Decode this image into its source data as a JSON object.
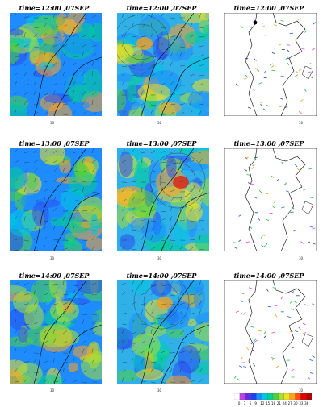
{
  "panels": [
    {
      "row": 0,
      "col": 0,
      "title": "time=12:00 ,07SEP",
      "kind": "shade"
    },
    {
      "row": 0,
      "col": 1,
      "title": "time=12:00 ,07SEP",
      "kind": "shade"
    },
    {
      "row": 0,
      "col": 2,
      "title": "time=12:00 ,07SEP",
      "kind": "obs"
    },
    {
      "row": 1,
      "col": 0,
      "title": "time=13:00 ,07SEP",
      "kind": "shade"
    },
    {
      "row": 1,
      "col": 1,
      "title": "time=13:00 ,07SEP",
      "kind": "shade"
    },
    {
      "row": 1,
      "col": 2,
      "title": "time=13:00 ,07SEP",
      "kind": "obs"
    },
    {
      "row": 2,
      "col": 0,
      "title": "time=14:00 ,07SEP",
      "kind": "shade"
    },
    {
      "row": 2,
      "col": 1,
      "title": "time=14:00 ,07SEP",
      "kind": "shade"
    },
    {
      "row": 2,
      "col": 2,
      "title": "time=14:00 ,07SEP",
      "kind": "obs"
    }
  ],
  "chart_data": {
    "type": "heatmap",
    "colorbar": {
      "ticks": [
        "0",
        "3",
        "6",
        "9",
        "12",
        "15",
        "18",
        "21",
        "24",
        "27",
        "30",
        "33",
        "36"
      ],
      "colors": [
        "#ffffff",
        "#c040e0",
        "#6030e0",
        "#2040f0",
        "#1e8cff",
        "#00c8e0",
        "#00d090",
        "#50d040",
        "#a8e030",
        "#f0e020",
        "#ffa020",
        "#ff5010",
        "#e00000",
        "#b00000"
      ]
    },
    "vector_scale_label": "30"
  }
}
